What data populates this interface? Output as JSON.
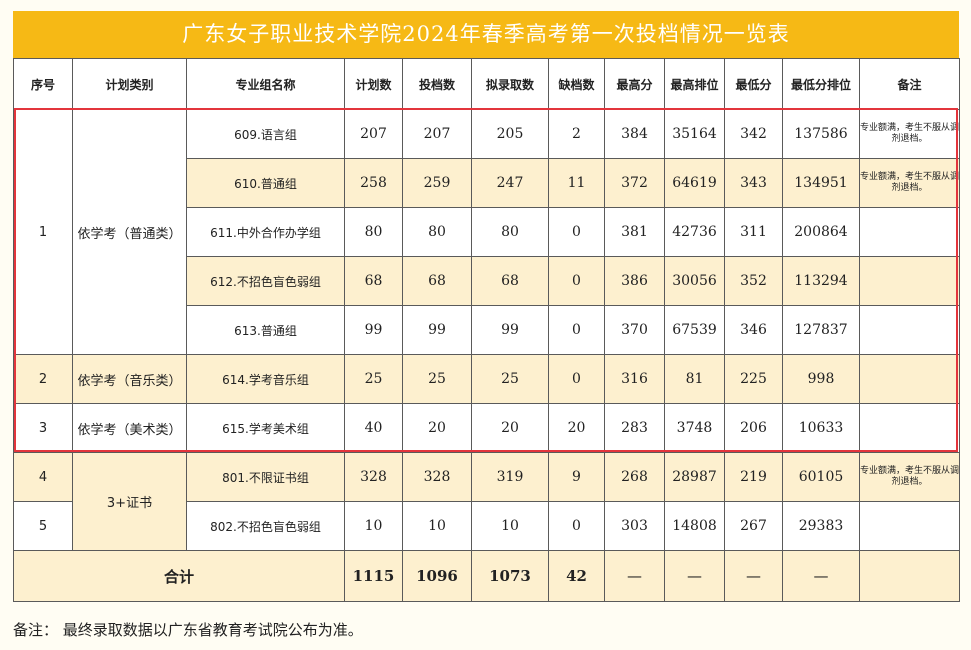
{
  "title": "广东女子职业技术学院2024年春季高考第一次投档情况一览表",
  "headers": [
    "序号",
    "计划类别",
    "专业组名称",
    "计划数",
    "投档数",
    "拟录取数",
    "缺档数",
    "最高分",
    "最高排位",
    "最低分",
    "最低分排位",
    "备注"
  ],
  "groups": [
    {
      "seq": "1",
      "category": "依学考（普通类）"
    },
    {
      "seq": "2",
      "category": "依学考（音乐类）"
    },
    {
      "seq": "3",
      "category": "依学考（美术类）"
    },
    {
      "seq": "4",
      "category": ""
    },
    {
      "seq": "5",
      "category": ""
    }
  ],
  "merged_category_45": "3+证书",
  "rows": [
    {
      "name": "609.语言组",
      "plan": "207",
      "filed": "207",
      "admit": "205",
      "short": "2",
      "max": "384",
      "max_rank": "35164",
      "min": "342",
      "min_rank": "137586",
      "note": "专业额满，考生不服从调剂退档。"
    },
    {
      "name": "610.普通组",
      "plan": "258",
      "filed": "259",
      "admit": "247",
      "short": "11",
      "max": "372",
      "max_rank": "64619",
      "min": "343",
      "min_rank": "134951",
      "note": "专业额满，考生不服从调剂退档。"
    },
    {
      "name": "611.中外合作办学组",
      "plan": "80",
      "filed": "80",
      "admit": "80",
      "short": "0",
      "max": "381",
      "max_rank": "42736",
      "min": "311",
      "min_rank": "200864",
      "note": ""
    },
    {
      "name": "612.不招色盲色弱组",
      "plan": "68",
      "filed": "68",
      "admit": "68",
      "short": "0",
      "max": "386",
      "max_rank": "30056",
      "min": "352",
      "min_rank": "113294",
      "note": ""
    },
    {
      "name": "613.普通组",
      "plan": "99",
      "filed": "99",
      "admit": "99",
      "short": "0",
      "max": "370",
      "max_rank": "67539",
      "min": "346",
      "min_rank": "127837",
      "note": ""
    },
    {
      "name": "614.学考音乐组",
      "plan": "25",
      "filed": "25",
      "admit": "25",
      "short": "0",
      "max": "316",
      "max_rank": "81",
      "min": "225",
      "min_rank": "998",
      "note": ""
    },
    {
      "name": "615.学考美术组",
      "plan": "40",
      "filed": "20",
      "admit": "20",
      "short": "20",
      "max": "283",
      "max_rank": "3748",
      "min": "206",
      "min_rank": "10633",
      "note": ""
    },
    {
      "name": "801.不限证书组",
      "plan": "328",
      "filed": "328",
      "admit": "319",
      "short": "9",
      "max": "268",
      "max_rank": "28987",
      "min": "219",
      "min_rank": "60105",
      "note": "专业额满，考生不服从调剂退档。"
    },
    {
      "name": "802.不招色盲色弱组",
      "plan": "10",
      "filed": "10",
      "admit": "10",
      "short": "0",
      "max": "303",
      "max_rank": "14808",
      "min": "267",
      "min_rank": "29383",
      "note": ""
    }
  ],
  "total": {
    "label": "合计",
    "plan": "1115",
    "filed": "1096",
    "admit": "1073",
    "short": "42",
    "dash": "—"
  },
  "footnote": "备注：  最终录取数据以广东省教育考试院公布为准。",
  "colors": {
    "title_bg": "#f6b915",
    "highlight_border": "#e3353c",
    "row_shade": "#fdf0cf"
  }
}
